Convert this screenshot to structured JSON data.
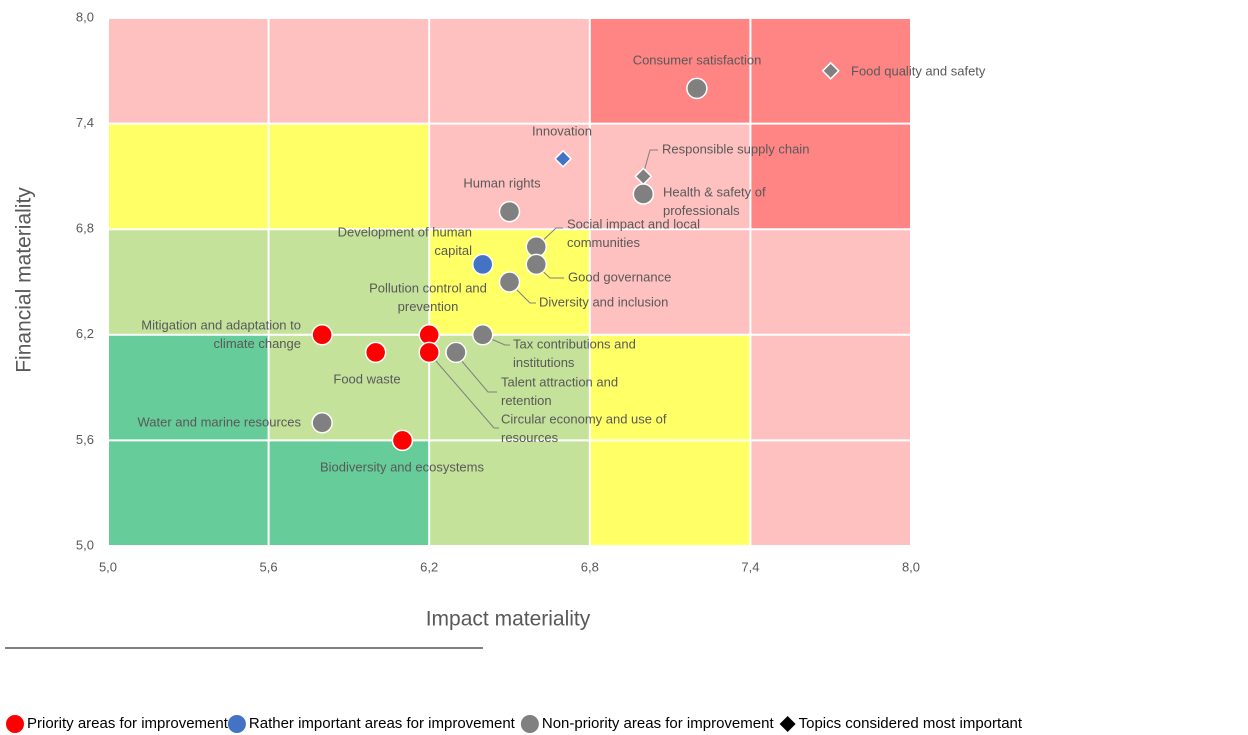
{
  "chart_data": {
    "type": "scatter",
    "xlabel": "Impact materiality",
    "ylabel": "Financial materiality",
    "xlim": [
      5,
      8
    ],
    "ylim": [
      5,
      8
    ],
    "xticks": [
      {
        "value": 5,
        "label": "5,0"
      },
      {
        "value": 5.6,
        "label": "5,6"
      },
      {
        "value": 6.2,
        "label": "6,2"
      },
      {
        "value": 6.8,
        "label": "6,8"
      },
      {
        "value": 7.4,
        "label": "7,4"
      },
      {
        "value": 8,
        "label": "8,0"
      }
    ],
    "yticks": [
      {
        "value": 5,
        "label": "5,0"
      },
      {
        "value": 5.6,
        "label": "5,6"
      },
      {
        "value": 6.2,
        "label": "6,2"
      },
      {
        "value": 6.8,
        "label": "6,8"
      },
      {
        "value": 7.4,
        "label": "7,4"
      },
      {
        "value": 8,
        "label": "8,0"
      }
    ],
    "grid": true,
    "zone_colors": [
      [
        "#ffc0c0",
        "#ffc0c0",
        "#ffc0c0",
        "#ff8585",
        "#ff8585"
      ],
      [
        "#ffff66",
        "#ffff66",
        "#ffc0c0",
        "#ffc0c0",
        "#ff8585"
      ],
      [
        "#c4e29a",
        "#c4e29a",
        "#ffff66",
        "#ffc0c0",
        "#ffc0c0"
      ],
      [
        "#66cc99",
        "#c4e29a",
        "#c4e29a",
        "#ffff66",
        "#ffc0c0"
      ],
      [
        "#66cc99",
        "#66cc99",
        "#c4e29a",
        "#ffff66",
        "#ffc0c0"
      ]
    ],
    "series": [
      {
        "name": "Priority areas for improvement",
        "color": "#ff0000",
        "x": [
          5.8,
          6.0,
          6.2,
          6.2,
          6.1
        ],
        "values": [
          6.2,
          6.1,
          6.2,
          6.1,
          5.6
        ],
        "markers": [
          "circle",
          "circle",
          "circle",
          "circle",
          "circle"
        ],
        "labels": [
          [
            "Mitigation and adaptation to",
            "climate change"
          ],
          [
            "Food waste"
          ],
          [
            "Pollution control and",
            "prevention"
          ],
          [
            "Circular economy and use of",
            "resources"
          ],
          [
            "Biodiversity and ecosystems"
          ]
        ]
      },
      {
        "name": "Rather important areas for improvement",
        "color": "#4472c4",
        "x": [
          6.4,
          6.7
        ],
        "values": [
          6.6,
          7.2
        ],
        "markers": [
          "circle",
          "diamond"
        ],
        "labels": [
          [
            "Development of human",
            "capital"
          ],
          [
            "Innovation"
          ]
        ]
      },
      {
        "name": "Non-priority areas for improvement",
        "color": "#808080",
        "x": [
          7.2,
          7.7,
          7.0,
          7.0,
          6.5,
          6.6,
          6.6,
          6.5,
          6.4,
          6.3,
          5.8
        ],
        "values": [
          7.6,
          7.7,
          7.1,
          7.0,
          6.9,
          6.7,
          6.6,
          6.5,
          6.2,
          6.1,
          5.7
        ],
        "markers": [
          "circle",
          "diamond",
          "diamond",
          "circle",
          "circle",
          "circle",
          "circle",
          "circle",
          "circle",
          "circle",
          "circle"
        ],
        "labels": [
          [
            "Consumer satisfaction"
          ],
          [
            "Food quality and safety"
          ],
          [
            "Responsible supply chain"
          ],
          [
            "Health & safety of",
            "professionals"
          ],
          [
            "Human rights"
          ],
          [
            "Social impact and local",
            "communities"
          ],
          [
            "Good governance"
          ],
          [
            "Diversity and inclusion"
          ],
          [
            "Tax contributions and",
            "institutions"
          ],
          [
            "Talent attraction and",
            "retention"
          ],
          [
            "Water and marine resources"
          ]
        ]
      }
    ],
    "legend_extra": {
      "name": "Topics considered most important",
      "color": "#000000",
      "marker": "diamond"
    }
  }
}
